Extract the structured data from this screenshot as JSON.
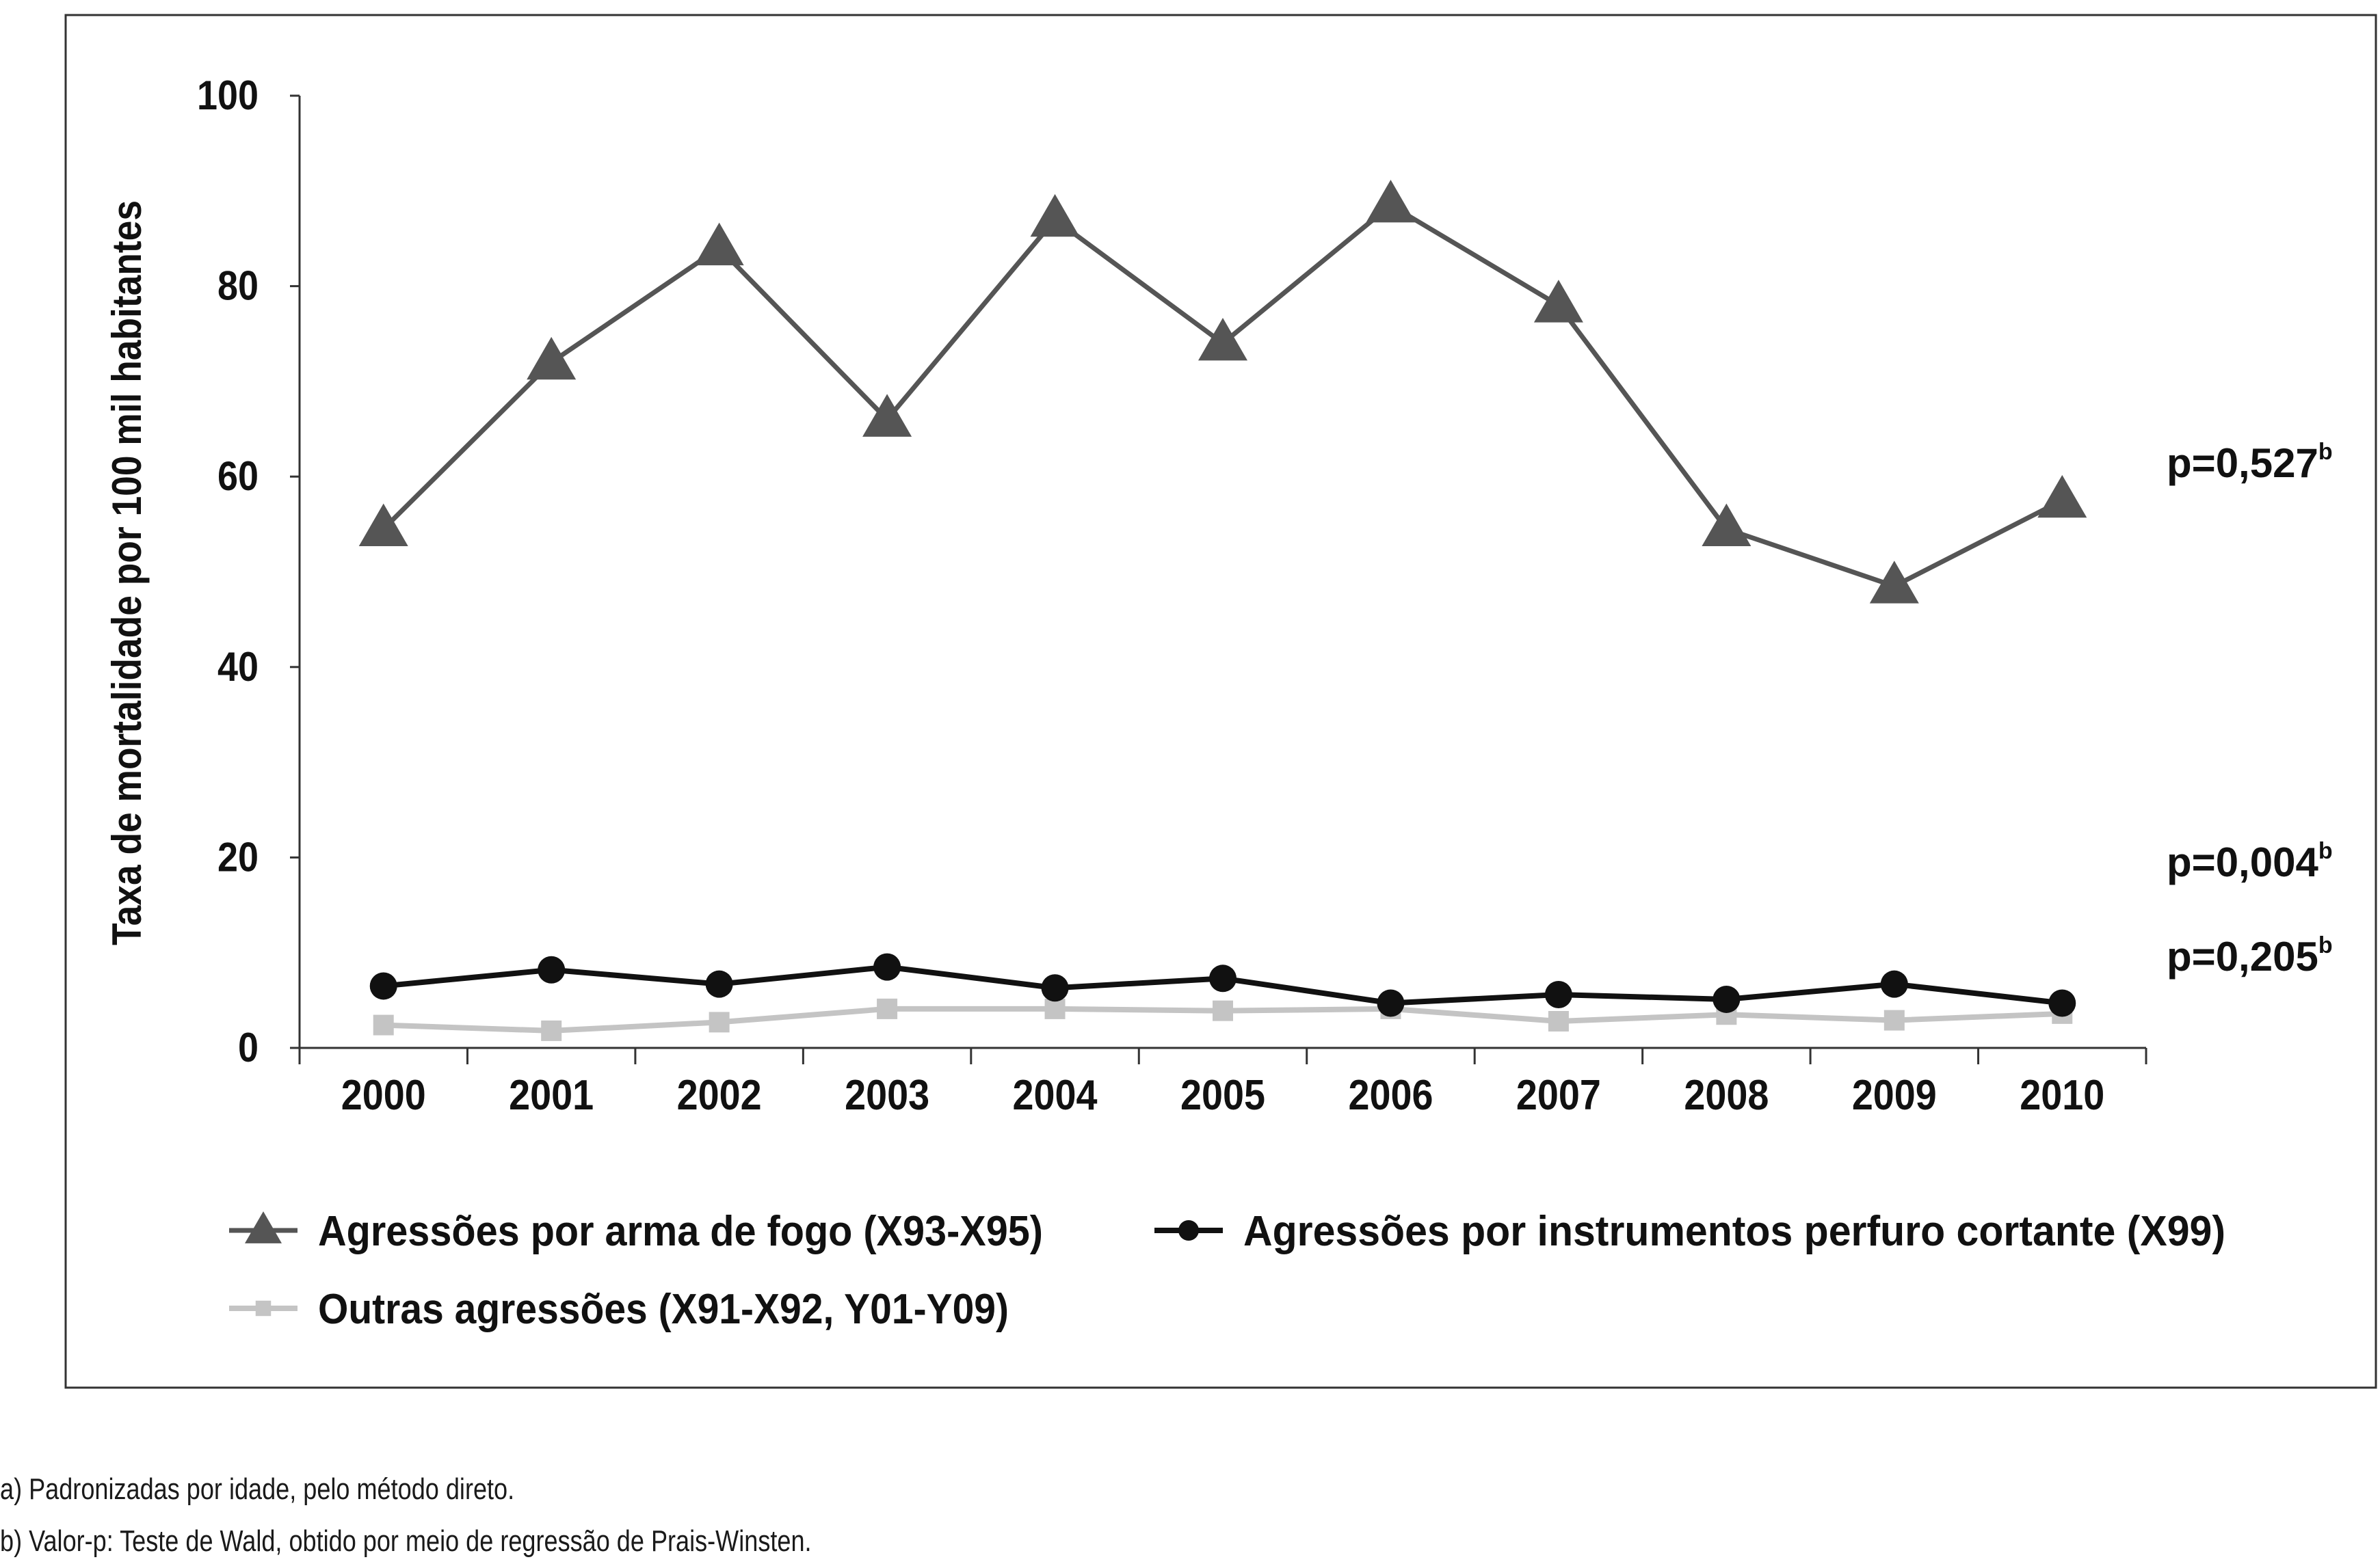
{
  "chart_data": {
    "type": "line",
    "xlabel": "",
    "ylabel": "Taxa de mortalidade por 100 mil habitantes",
    "ylim": [
      0,
      100
    ],
    "yticks": [
      "0",
      "20",
      "40",
      "60",
      "80",
      "100"
    ],
    "categories": [
      "2000",
      "2001",
      "2002",
      "2003",
      "2004",
      "2005",
      "2006",
      "2007",
      "2008",
      "2009",
      "2010"
    ],
    "series": [
      {
        "name": "Agressões por arma de fogo (X93-X95)",
        "marker": "triangle",
        "color": "#555555",
        "values": [
          54.5,
          72.0,
          84.0,
          66.0,
          87.0,
          74.0,
          88.5,
          78.0,
          54.5,
          48.5,
          57.5
        ],
        "p_value_label": "p=0,527",
        "p_value_sup": "b"
      },
      {
        "name": "Agressões por instrumentos perfuro cortante (X99)",
        "marker": "circle",
        "color": "#111111",
        "values": [
          6.5,
          8.2,
          6.7,
          8.5,
          6.3,
          7.3,
          4.7,
          5.6,
          5.1,
          6.7,
          4.7
        ],
        "p_value_label": "p=0,004",
        "p_value_sup": "b"
      },
      {
        "name": "Outras agressões (X91-X92, Y01-Y09)",
        "marker": "square",
        "color": "#c4c4c4",
        "values": [
          2.4,
          1.8,
          2.7,
          4.1,
          4.1,
          3.9,
          4.1,
          2.8,
          3.5,
          2.9,
          3.6
        ],
        "p_value_label": "p=0,205",
        "p_value_sup": "b"
      }
    ]
  },
  "footnotes": {
    "a": "a) Padronizadas por idade, pelo método direto.",
    "b": "b) Valor-p: Teste de Wald, obtido por meio de regressão de Prais-Winsten."
  }
}
